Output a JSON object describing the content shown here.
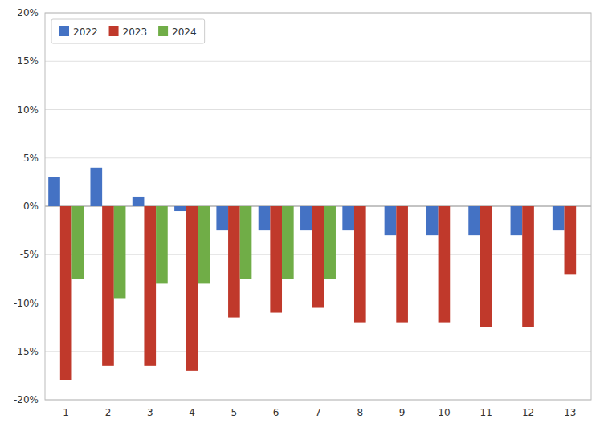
{
  "chart_data": {
    "type": "bar",
    "categories": [
      1,
      2,
      3,
      4,
      5,
      6,
      7,
      8,
      9,
      10,
      11,
      12,
      13
    ],
    "series": [
      {
        "name": "2022",
        "color": "#4472c4",
        "values": [
          3.0,
          4.0,
          1.0,
          -0.5,
          -2.5,
          -2.5,
          -2.5,
          -2.5,
          -3.0,
          -3.0,
          -3.0,
          -3.0,
          -2.5
        ]
      },
      {
        "name": "2023",
        "color": "#c0392b",
        "values": [
          -18.0,
          -16.5,
          -16.5,
          -17.0,
          -11.5,
          -11.0,
          -10.5,
          -12.0,
          -12.0,
          -12.0,
          -12.5,
          -12.5,
          -7.0
        ]
      },
      {
        "name": "2024",
        "color": "#70ad47",
        "values": [
          -7.5,
          -9.5,
          -8.0,
          -8.0,
          -7.5,
          -7.5,
          -7.5,
          null,
          null,
          null,
          null,
          null,
          null
        ]
      }
    ],
    "ylim": [
      -20,
      20
    ],
    "yticks": [
      {
        "value": -20,
        "label": "-20%"
      },
      {
        "value": -15,
        "label": "-15%"
      },
      {
        "value": -10,
        "label": "-10%"
      },
      {
        "value": -5,
        "label": "-5%"
      },
      {
        "value": 0,
        "label": "0%"
      },
      {
        "value": 5,
        "label": "5%"
      },
      {
        "value": 10,
        "label": "10%"
      },
      {
        "value": 15,
        "label": "15%"
      },
      {
        "value": 20,
        "label": "20%"
      }
    ],
    "grid": true,
    "legend": "upper left"
  }
}
